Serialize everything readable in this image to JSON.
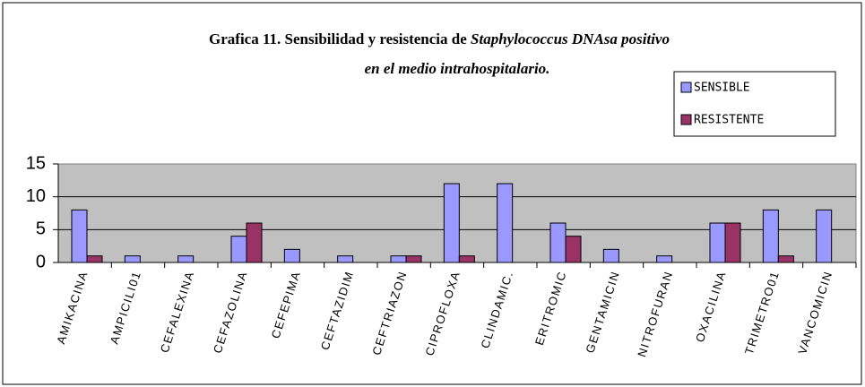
{
  "chart_data": {
    "type": "bar",
    "title": "Grafica 11. Sensibilidad y resistencia de",
    "title_italic": "Staphylococcus DNAsa positivo",
    "subtitle": "en el medio intrahospitalario.",
    "categories": [
      "AMIKACINA",
      "AMPICILI01",
      "CEFALEXINA",
      "CEFAZOLINA",
      "CEFEPIMA",
      "CEFTAZIDIM",
      "CEFTRIAZON",
      "CIPROFLOXA",
      "CLINDAMIC.",
      "ERITROMIC",
      "GENTAMICIN",
      "NITROFURAN",
      "OXACILINA",
      "TRIMETRO01",
      "VANCOMICIN"
    ],
    "series": [
      {
        "name": "SENSIBLE",
        "color": "#9999ff",
        "values": [
          8,
          1,
          1,
          4,
          2,
          1,
          1,
          12,
          12,
          6,
          2,
          1,
          6,
          8,
          8
        ]
      },
      {
        "name": "RESISTENTE",
        "color": "#993366",
        "values": [
          1,
          0,
          0,
          6,
          0,
          0,
          1,
          1,
          0,
          4,
          0,
          0,
          6,
          1,
          0
        ]
      }
    ],
    "ylim": [
      0,
      15
    ],
    "yticks": [
      0,
      5,
      10,
      15
    ],
    "grid": true,
    "legend": "top-right"
  }
}
